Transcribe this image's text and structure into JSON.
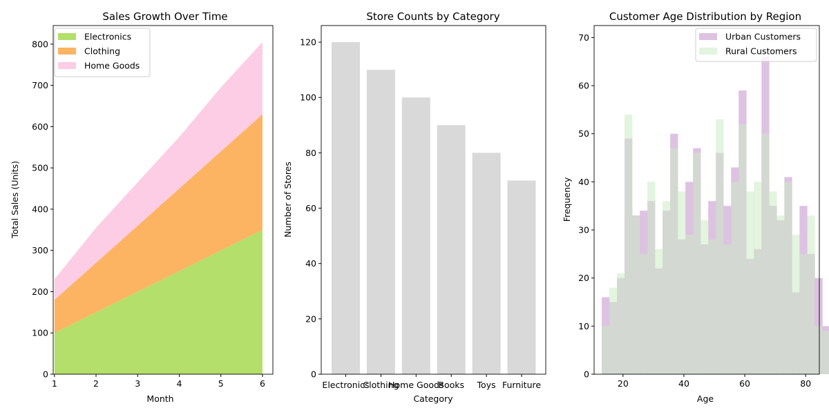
{
  "chart_data": [
    {
      "type": "area",
      "stacked": true,
      "title": "Sales Growth Over Time",
      "xlabel": "Month",
      "ylabel": "Total Sales (Units)",
      "x": [
        1,
        2,
        3,
        4,
        5,
        6
      ],
      "xlim": [
        0.97,
        6.25
      ],
      "ylim": [
        0,
        845
      ],
      "yticks": [
        0,
        100,
        200,
        300,
        400,
        500,
        600,
        700,
        800
      ],
      "series": [
        {
          "name": "Electronics",
          "values": [
            100,
            150,
            200,
            250,
            300,
            350
          ],
          "color": "#b3df6a"
        },
        {
          "name": "Clothing",
          "values": [
            80,
            120,
            160,
            200,
            240,
            280
          ],
          "color": "#fdb462"
        },
        {
          "name": "Home Goods",
          "values": [
            50,
            85,
            105,
            125,
            155,
            175
          ],
          "color": "#fccde5"
        }
      ],
      "legend": "top-left",
      "grid": false
    },
    {
      "type": "bar",
      "title": "Store Counts by Category",
      "xlabel": "Category",
      "ylabel": "Number of Stores",
      "categories": [
        "Electronics",
        "Clothing",
        "Home Goods",
        "Books",
        "Toys",
        "Furniture"
      ],
      "values": [
        120,
        110,
        100,
        90,
        80,
        70
      ],
      "ylim": [
        0,
        126
      ],
      "yticks": [
        0,
        20,
        40,
        60,
        80,
        100,
        120
      ],
      "color": "#d9d9d9",
      "grid": false
    },
    {
      "type": "histogram",
      "title": "Customer Age Distribution by Region",
      "xlabel": "Age",
      "ylabel": "Frequency",
      "bin_start": 13,
      "bin_width": 2.5,
      "xlim": [
        10.5,
        84.5
      ],
      "ylim": [
        0,
        72.5
      ],
      "xticks": [
        20,
        40,
        60,
        80
      ],
      "yticks": [
        0,
        10,
        20,
        30,
        40,
        50,
        60,
        70
      ],
      "series": [
        {
          "name": "Urban Customers",
          "color": "#c38fcb",
          "values": [
            16,
            15,
            20,
            49,
            33,
            34,
            36,
            22,
            34,
            50,
            28,
            40,
            47,
            27,
            36,
            46,
            35,
            43,
            59,
            24,
            26,
            66,
            35,
            32,
            41,
            17,
            35,
            25,
            20,
            10
          ]
        },
        {
          "name": "Rural Customers",
          "color": "#ccebc5",
          "values": [
            10,
            18,
            21,
            54,
            33,
            25,
            40,
            26,
            36,
            47,
            38,
            29,
            46,
            32,
            28,
            53,
            27,
            40,
            52,
            38,
            40,
            50,
            38,
            33,
            40,
            29,
            25,
            33,
            10,
            9
          ]
        }
      ],
      "legend": "top-right",
      "grid": false
    }
  ]
}
